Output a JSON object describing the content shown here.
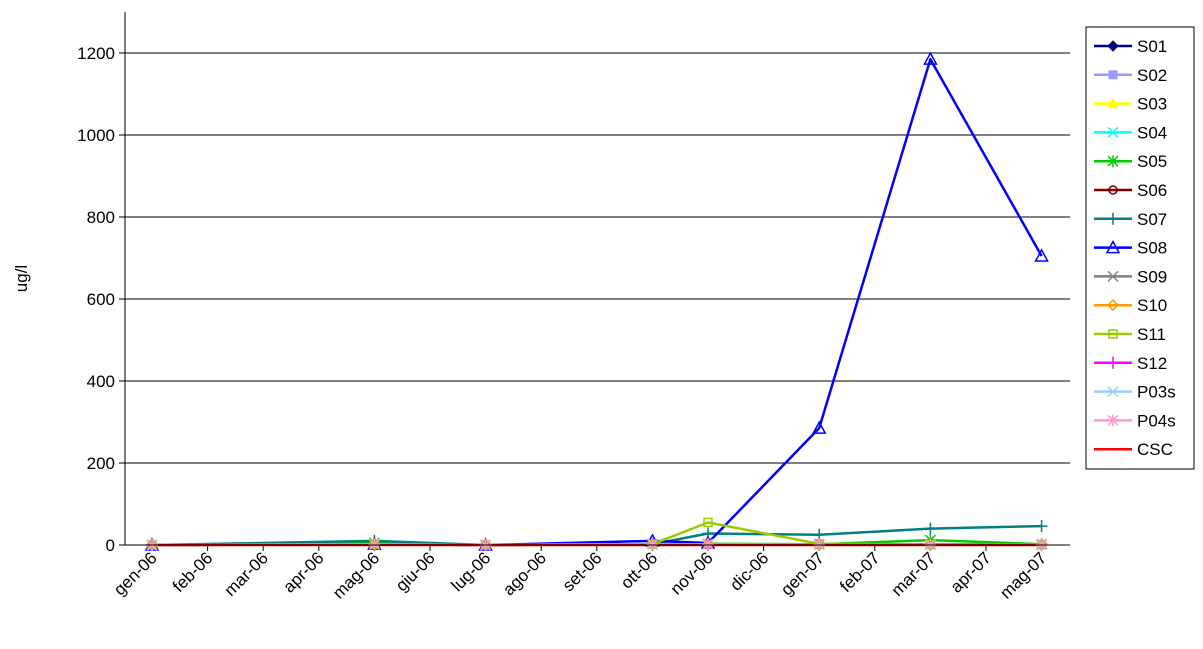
{
  "chart_data": {
    "type": "line",
    "title": "",
    "xlabel": "",
    "ylabel": "ug/l",
    "ylim": [
      0,
      1300
    ],
    "yticks": [
      0,
      200,
      400,
      600,
      800,
      1000,
      1200
    ],
    "grid": true,
    "legend_position": "right",
    "categories": [
      "gen-06",
      "feb-06",
      "mar-06",
      "apr-06",
      "mag-06",
      "giu-06",
      "lug-06",
      "ago-06",
      "set-06",
      "ott-06",
      "nov-06",
      "dic-06",
      "gen-07",
      "feb-07",
      "mar-07",
      "apr-07",
      "mag-07"
    ],
    "series": [
      {
        "name": "S01",
        "color": "#000080",
        "marker": "diamond",
        "values": [
          0,
          null,
          null,
          null,
          2,
          null,
          0,
          null,
          null,
          2,
          2,
          null,
          1,
          null,
          1,
          null,
          1
        ]
      },
      {
        "name": "S02",
        "color": "#9999ff",
        "marker": "square",
        "values": [
          0,
          null,
          null,
          null,
          2,
          null,
          0,
          null,
          null,
          2,
          2,
          null,
          1,
          null,
          1,
          null,
          1
        ]
      },
      {
        "name": "S03",
        "color": "#ffff00",
        "marker": "triangle",
        "values": [
          0,
          null,
          null,
          null,
          2,
          null,
          0,
          null,
          null,
          2,
          2,
          null,
          1,
          null,
          1,
          null,
          1
        ]
      },
      {
        "name": "S04",
        "color": "#00ffff",
        "marker": "x",
        "values": [
          0,
          null,
          null,
          null,
          2,
          null,
          0,
          null,
          null,
          2,
          2,
          null,
          1,
          null,
          1,
          null,
          1
        ]
      },
      {
        "name": "S05",
        "color": "#00cc00",
        "marker": "asterisk",
        "values": [
          0,
          null,
          null,
          null,
          5,
          null,
          0,
          null,
          null,
          2,
          3,
          null,
          2,
          null,
          12,
          null,
          2
        ]
      },
      {
        "name": "S06",
        "color": "#800000",
        "marker": "circle",
        "values": [
          0,
          null,
          null,
          null,
          2,
          null,
          0,
          null,
          null,
          2,
          2,
          null,
          1,
          null,
          1,
          null,
          1
        ]
      },
      {
        "name": "S07",
        "color": "#008080",
        "marker": "plus",
        "values": [
          0,
          null,
          null,
          null,
          10,
          null,
          0,
          null,
          null,
          2,
          28,
          null,
          25,
          null,
          40,
          null,
          46
        ]
      },
      {
        "name": "S08",
        "color": "#0000ff",
        "marker": "triangle-open",
        "values": [
          0,
          null,
          null,
          null,
          2,
          null,
          0,
          null,
          null,
          10,
          5,
          null,
          285,
          null,
          1185,
          null,
          705
        ]
      },
      {
        "name": "S09",
        "color": "#808080",
        "marker": "x",
        "values": [
          0,
          null,
          null,
          null,
          2,
          null,
          0,
          null,
          null,
          2,
          2,
          null,
          1,
          null,
          1,
          null,
          1
        ]
      },
      {
        "name": "S10",
        "color": "#ff9900",
        "marker": "diamond-open",
        "values": [
          0,
          null,
          null,
          null,
          2,
          null,
          0,
          null,
          null,
          2,
          2,
          null,
          1,
          null,
          1,
          null,
          1
        ]
      },
      {
        "name": "S11",
        "color": "#99cc00",
        "marker": "square-open",
        "values": [
          0,
          null,
          null,
          null,
          2,
          null,
          0,
          null,
          null,
          2,
          55,
          null,
          3,
          null,
          1,
          null,
          1
        ]
      },
      {
        "name": "S12",
        "color": "#ff00ff",
        "marker": "plus",
        "values": [
          0,
          null,
          null,
          null,
          2,
          null,
          0,
          null,
          null,
          2,
          2,
          null,
          1,
          null,
          1,
          null,
          1
        ]
      },
      {
        "name": "P03s",
        "color": "#99ccff",
        "marker": "x",
        "values": [
          0,
          null,
          null,
          null,
          2,
          null,
          0,
          null,
          null,
          2,
          2,
          null,
          1,
          null,
          1,
          null,
          1
        ]
      },
      {
        "name": "P04s",
        "color": "#ff99cc",
        "marker": "asterisk",
        "values": [
          0,
          null,
          null,
          null,
          2,
          null,
          0,
          null,
          null,
          2,
          2,
          null,
          1,
          null,
          1,
          null,
          1
        ]
      },
      {
        "name": "CSC",
        "color": "#ff0000",
        "marker": "none",
        "values": [
          0,
          0,
          0,
          0,
          0,
          0,
          0,
          0,
          0,
          0,
          0,
          0,
          0,
          0,
          0,
          0,
          0
        ]
      }
    ]
  }
}
